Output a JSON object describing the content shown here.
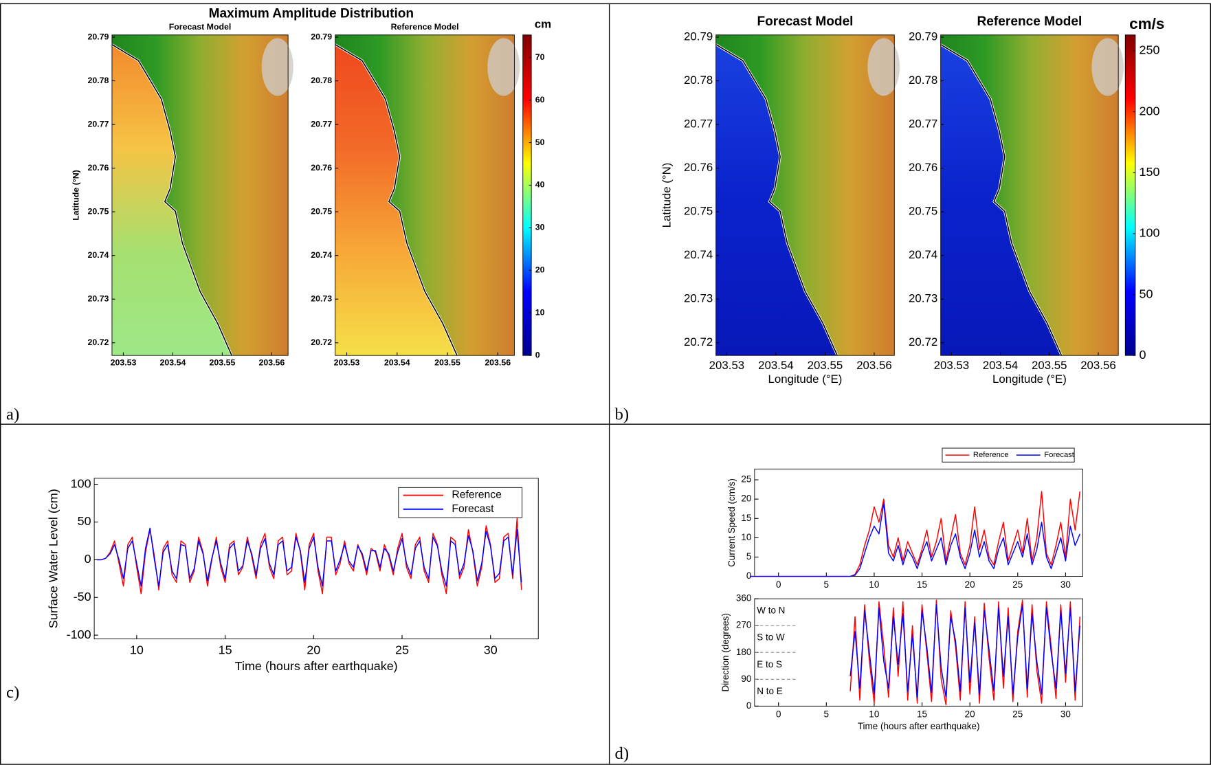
{
  "panels": [
    {
      "label": "a)",
      "title": "Maximum Amplitude Distribution"
    },
    {
      "label": "b)"
    },
    {
      "label": "c)"
    },
    {
      "label": "d)"
    }
  ],
  "chart_data": [
    {
      "type": "map",
      "title": "Forecast Model",
      "ylabel": "Latitude (°N)",
      "xlim": [
        203.5277,
        203.5633
      ],
      "ylim": [
        20.7171,
        20.7905
      ],
      "xticks": [
        203.53,
        203.54,
        203.55,
        203.56
      ],
      "yticks": [
        20.72,
        20.73,
        20.74,
        20.75,
        20.76,
        20.77,
        20.78,
        20.79
      ],
      "sea_colors": [
        "#f28a2e",
        "#f6c444",
        "#a6e070",
        "#9ee888"
      ],
      "land_colors": [
        "#1f861f",
        "#2e9a24",
        "#8fae30",
        "#d2a030",
        "#cf7d2e"
      ]
    },
    {
      "type": "map",
      "title": "Reference Model",
      "xlim": [
        203.5277,
        203.5633
      ],
      "ylim": [
        20.7171,
        20.7905
      ],
      "xticks": [
        203.53,
        203.54,
        203.55,
        203.56
      ],
      "yticks": [
        20.72,
        20.73,
        20.74,
        20.75,
        20.76,
        20.77,
        20.78,
        20.79
      ],
      "sea_colors": [
        "#f0481e",
        "#f26a28",
        "#f7a838",
        "#f5e048"
      ],
      "land_colors": [
        "#1f861f",
        "#2e9a24",
        "#8fae30",
        "#d2a030",
        "#cf7d2e"
      ]
    },
    {
      "type": "colorbar",
      "unit": "cm",
      "ylim": [
        0,
        75.3
      ],
      "yticks": [
        0,
        10,
        20,
        30,
        40,
        50,
        60,
        70
      ],
      "colors": [
        "#00008f",
        "#0000ff",
        "#00ffff",
        "#ffff00",
        "#ff0000",
        "#800000"
      ]
    },
    {
      "type": "map",
      "title": "Forecast Model",
      "ylabel": "Latitude (°N)",
      "xlabel": "Longitude (°E)",
      "xlim": [
        203.5278,
        203.5641
      ],
      "ylim": [
        20.7171,
        20.7905
      ],
      "xticks": [
        203.53,
        203.54,
        203.55,
        203.56
      ],
      "yticks": [
        20.72,
        20.73,
        20.74,
        20.75,
        20.76,
        20.77,
        20.78,
        20.79
      ],
      "sea_colors": [
        "#1a40e0",
        "#0a22cc",
        "#0818b8"
      ],
      "land_colors": [
        "#1f861f",
        "#2e9a24",
        "#8fae30",
        "#d2a030",
        "#cf7d2e"
      ]
    },
    {
      "type": "map",
      "title": "Reference Model",
      "xlabel": "Longitude (°E)",
      "xlim": [
        203.5278,
        203.5641
      ],
      "ylim": [
        20.7171,
        20.7905
      ],
      "xticks": [
        203.53,
        203.54,
        203.55,
        203.56
      ],
      "yticks": [
        20.72,
        20.73,
        20.74,
        20.75,
        20.76,
        20.77,
        20.78,
        20.79
      ],
      "sea_colors": [
        "#1a40e0",
        "#0a22cc",
        "#0818b8"
      ],
      "land_colors": [
        "#1f861f",
        "#2e9a24",
        "#8fae30",
        "#d2a030",
        "#cf7d2e"
      ]
    },
    {
      "type": "colorbar",
      "unit": "cm/s",
      "ylim": [
        0,
        263
      ],
      "yticks": [
        0,
        50,
        100,
        150,
        200,
        250
      ],
      "colors": [
        "#00008f",
        "#0000ff",
        "#00ffff",
        "#ffff00",
        "#ff0000",
        "#800000"
      ]
    },
    {
      "type": "line",
      "xlabel": "Time (hours after earthquake)",
      "ylabel": "Surface Water Level (cm)",
      "xlim": [
        7.6,
        32.7
      ],
      "ylim": [
        -105,
        108
      ],
      "xticks": [
        10,
        15,
        20,
        25,
        30
      ],
      "yticks": [
        -100,
        -50,
        0,
        50,
        100
      ],
      "legend": "upper right",
      "x": [
        7.75,
        8,
        8.25,
        8.5,
        8.75,
        9,
        9.25,
        9.5,
        9.75,
        10,
        10.25,
        10.5,
        10.75,
        11,
        11.25,
        11.5,
        11.75,
        12,
        12.25,
        12.5,
        12.75,
        13,
        13.25,
        13.5,
        13.75,
        14,
        14.25,
        14.5,
        14.75,
        15,
        15.25,
        15.5,
        15.75,
        16,
        16.25,
        16.5,
        16.75,
        17,
        17.25,
        17.5,
        17.75,
        18,
        18.25,
        18.5,
        18.75,
        19,
        19.25,
        19.5,
        19.75,
        20,
        20.25,
        20.5,
        20.75,
        21,
        21.25,
        21.5,
        21.75,
        22,
        22.25,
        22.5,
        22.75,
        23,
        23.25,
        23.5,
        23.75,
        24,
        24.25,
        24.5,
        24.75,
        25,
        25.25,
        25.5,
        25.75,
        26,
        26.25,
        26.5,
        26.75,
        27,
        27.25,
        27.5,
        27.75,
        28,
        28.25,
        28.5,
        28.75,
        29,
        29.25,
        29.5,
        29.75,
        30,
        30.25,
        30.5,
        30.75,
        31,
        31.25,
        31.5,
        31.75
      ],
      "series": [
        {
          "name": "Reference",
          "color": "#ff0000",
          "values": [
            0,
            0,
            2,
            10,
            25,
            -5,
            -35,
            20,
            30,
            -10,
            -45,
            10,
            40,
            5,
            -40,
            15,
            25,
            -20,
            -30,
            25,
            20,
            -30,
            -15,
            30,
            10,
            -35,
            0,
            30,
            -10,
            -30,
            20,
            25,
            -20,
            -10,
            30,
            5,
            -25,
            20,
            35,
            -10,
            -25,
            25,
            30,
            -20,
            -15,
            35,
            10,
            -40,
            20,
            35,
            -15,
            -45,
            30,
            30,
            -20,
            -5,
            25,
            -5,
            -15,
            20,
            5,
            -20,
            15,
            10,
            -15,
            20,
            5,
            -20,
            15,
            35,
            -10,
            -25,
            20,
            30,
            -15,
            -30,
            35,
            20,
            -20,
            -45,
            30,
            25,
            -25,
            -10,
            40,
            10,
            -35,
            -10,
            45,
            20,
            -30,
            -25,
            30,
            35,
            -25,
            55,
            -40
          ]
        },
        {
          "name": "Forecast",
          "color": "#0000ff",
          "values": [
            0,
            0,
            2,
            8,
            20,
            0,
            -25,
            15,
            25,
            -5,
            -35,
            15,
            42,
            0,
            -35,
            10,
            20,
            -15,
            -25,
            20,
            18,
            -25,
            -12,
            25,
            8,
            -28,
            2,
            25,
            -5,
            -25,
            15,
            22,
            -15,
            -8,
            25,
            8,
            -20,
            15,
            28,
            -5,
            -20,
            20,
            25,
            -15,
            -10,
            30,
            12,
            -30,
            15,
            30,
            -10,
            -35,
            25,
            25,
            -15,
            0,
            20,
            -2,
            -10,
            18,
            8,
            -15,
            12,
            12,
            -10,
            15,
            8,
            -15,
            10,
            28,
            -5,
            -20,
            15,
            25,
            -10,
            -25,
            30,
            18,
            -15,
            -35,
            25,
            20,
            -20,
            -5,
            32,
            12,
            -28,
            -5,
            38,
            18,
            -25,
            -18,
            25,
            30,
            -20,
            40,
            -30
          ]
        }
      ]
    },
    {
      "type": "line",
      "ylabel": "Current Speed (cm/s)",
      "xlim": [
        -2.5,
        31.8
      ],
      "ylim": [
        0,
        27.8
      ],
      "xticks": [
        0,
        5,
        10,
        15,
        20,
        25,
        30
      ],
      "yticks": [
        0,
        5,
        10,
        15,
        20,
        25
      ],
      "legend": "above",
      "x": [
        -3,
        7.5,
        8,
        8.5,
        9,
        9.5,
        10,
        10.5,
        11,
        11.5,
        12,
        12.5,
        13,
        13.5,
        14,
        14.5,
        15,
        15.5,
        16,
        16.5,
        17,
        17.5,
        18,
        18.5,
        19,
        19.5,
        20,
        20.5,
        21,
        21.5,
        22,
        22.5,
        23,
        23.5,
        24,
        24.5,
        25,
        25.5,
        26,
        26.5,
        27,
        27.5,
        28,
        28.5,
        29,
        29.5,
        30,
        30.5,
        31,
        31.5
      ],
      "series": [
        {
          "name": "Reference",
          "color": "#ff0000",
          "values": [
            0,
            0,
            0.5,
            3,
            8,
            12,
            18,
            14,
            20,
            8,
            5,
            10,
            4,
            9,
            6,
            3,
            7,
            12,
            5,
            9,
            15,
            4,
            10,
            16,
            6,
            3,
            8,
            18,
            7,
            12,
            5,
            3,
            9,
            14,
            4,
            8,
            12,
            6,
            15,
            4,
            10,
            22,
            6,
            3,
            8,
            14,
            5,
            20,
            12,
            22
          ]
        },
        {
          "name": "Forecast",
          "color": "#0000ff",
          "values": [
            0,
            0,
            0.3,
            2,
            6,
            10,
            13,
            11,
            19,
            6,
            4,
            8,
            3,
            7,
            5,
            2,
            6,
            9,
            4,
            7,
            10,
            3,
            8,
            11,
            5,
            2,
            6,
            12,
            5,
            9,
            4,
            2,
            7,
            10,
            3,
            6,
            9,
            5,
            11,
            3,
            7,
            14,
            5,
            2,
            6,
            10,
            4,
            13,
            8,
            11
          ]
        }
      ]
    },
    {
      "type": "line",
      "xlabel": "Time (hours after earthquake)",
      "ylabel": "Direction (degrees)",
      "xlim": [
        -2.5,
        31.8
      ],
      "ylim": [
        0,
        360
      ],
      "xticks": [
        0,
        5,
        10,
        15,
        20,
        25,
        30
      ],
      "yticks": [
        0,
        90,
        180,
        270,
        360
      ],
      "annotations": [
        "W to N",
        "S to W",
        "E to S",
        "N to E"
      ],
      "x": [
        -3,
        7.5,
        8,
        8.5,
        9,
        9.5,
        10,
        10.5,
        11,
        11.5,
        12,
        12.5,
        13,
        13.5,
        14,
        14.5,
        15,
        15.5,
        16,
        16.5,
        17,
        17.5,
        18,
        18.5,
        19,
        19.5,
        20,
        20.5,
        21,
        21.5,
        22,
        22.5,
        23,
        23.5,
        24,
        24.5,
        25,
        25.5,
        26,
        26.5,
        27,
        27.5,
        28,
        28.5,
        29,
        29.5,
        30,
        30.5,
        31,
        31.5
      ],
      "series": [
        {
          "name": "Reference",
          "color": "#ff0000",
          "values": [
            null,
            50,
            300,
            20,
            340,
            150,
            10,
            350,
            200,
            30,
            330,
            100,
            350,
            20,
            270,
            10,
            340,
            180,
            15,
            355,
            90,
            5,
            320,
            200,
            20,
            350,
            40,
            300,
            10,
            345,
            160,
            20,
            350,
            60,
            330,
            15,
            250,
            355,
            30,
            340,
            120,
            10,
            350,
            200,
            25,
            340,
            80,
            350,
            20,
            300
          ]
        },
        {
          "name": "Forecast",
          "color": "#0000ff",
          "values": [
            null,
            100,
            250,
            60,
            320,
            180,
            40,
            330,
            150,
            60,
            300,
            140,
            310,
            50,
            240,
            30,
            320,
            200,
            45,
            340,
            130,
            30,
            300,
            220,
            50,
            330,
            80,
            280,
            40,
            320,
            190,
            50,
            330,
            100,
            300,
            40,
            230,
            340,
            60,
            310,
            150,
            40,
            330,
            180,
            60,
            320,
            110,
            330,
            50,
            270
          ]
        }
      ]
    }
  ]
}
